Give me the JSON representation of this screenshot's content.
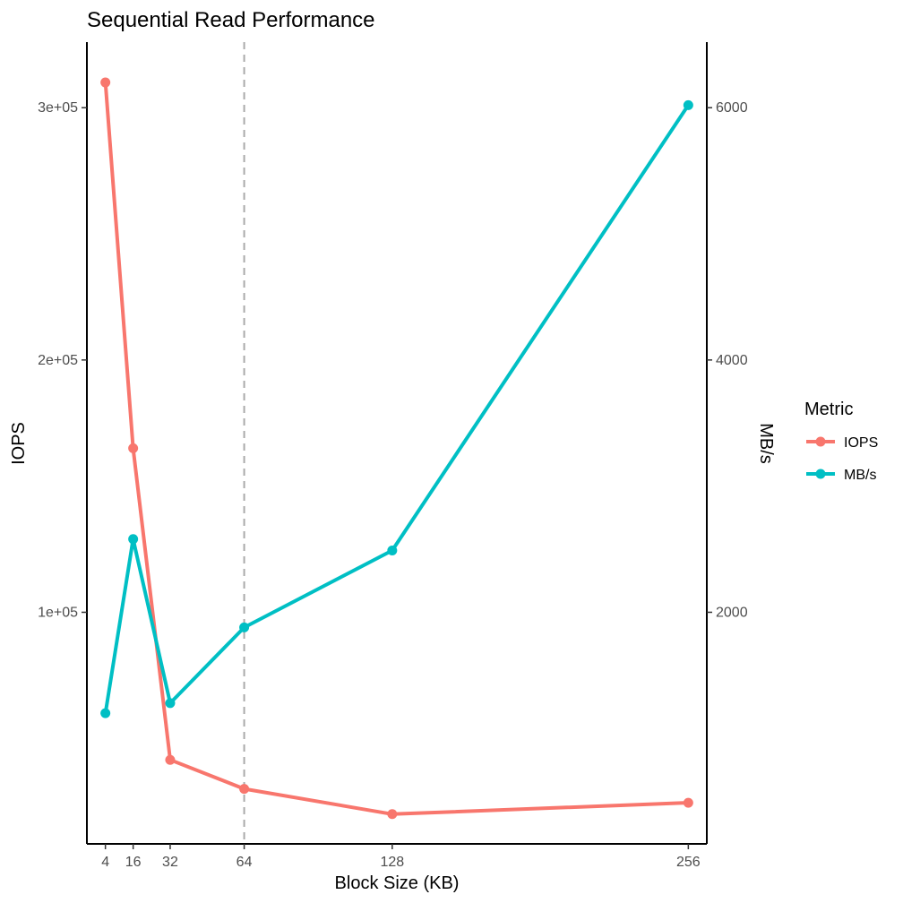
{
  "chart_data": {
    "type": "line",
    "title": "Sequential Read Performance",
    "xlabel": "Block Size (KB)",
    "ylabel": "IOPS",
    "y2label": "MB/s",
    "x": [
      4,
      16,
      32,
      64,
      128,
      256
    ],
    "x_ticks": [
      4,
      16,
      32,
      64,
      128,
      256
    ],
    "xlim": [
      -4,
      264
    ],
    "ylim": [
      8200,
      326000
    ],
    "y_ticks": [
      100000,
      200000,
      300000
    ],
    "y_tick_labels": [
      "1e+05",
      "2e+05",
      "3e+05"
    ],
    "y2lim": [
      164,
      6520
    ],
    "y2_ticks": [
      2000,
      4000,
      6000
    ],
    "y2_tick_labels": [
      "2000",
      "4000",
      "6000"
    ],
    "reference_line": {
      "x": 64,
      "style": "dashed",
      "color": "#aaaaaa"
    },
    "grid": false,
    "legend": {
      "title": "Metric",
      "position": "right"
    },
    "series": [
      {
        "name": "IOPS",
        "axis": "left",
        "color": "#F8766D",
        "values": [
          310000,
          165000,
          41500,
          30000,
          20000,
          24500
        ]
      },
      {
        "name": "MB/s",
        "axis": "right",
        "color": "#00BFC4",
        "values": [
          1200,
          2580,
          1280,
          1880,
          2490,
          6020
        ]
      }
    ]
  }
}
